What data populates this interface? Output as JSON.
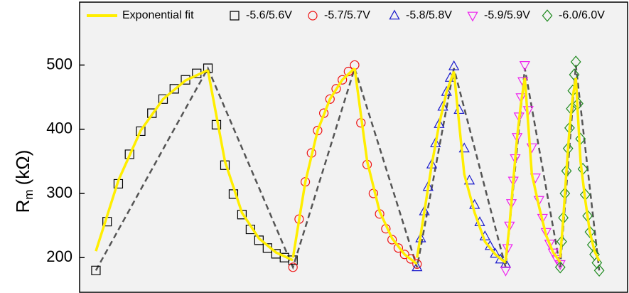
{
  "chart_data": {
    "type": "scatter",
    "y_label_main": "R",
    "y_label_sub": "m",
    "y_label_unit": "(kΩ)",
    "xlim": [
      0,
      77.3
    ],
    "ylim": [
      146,
      598
    ],
    "yticks": [
      200,
      300,
      400,
      500
    ],
    "fit": {
      "name": "Exponential fit",
      "color": "#ffee00",
      "x": [
        2.3,
        5.46,
        8.62,
        11.78,
        14.94,
        18.1,
        null,
        18.1,
        20.5,
        22.9,
        25.3,
        27.7,
        30.1,
        null,
        30.1,
        31.84,
        33.58,
        35.32,
        37.06,
        38.8,
        null,
        38.8,
        40.56,
        42.32,
        44.08,
        45.84,
        47.6,
        null,
        47.6,
        48.64,
        49.68,
        50.72,
        51.76,
        52.8,
        null,
        52.8,
        54.26,
        55.72,
        57.18,
        58.64,
        60.1,
        null,
        60.1,
        60.64,
        61.18,
        61.72,
        62.26,
        62.8,
        null,
        62.8,
        63.8,
        64.8,
        65.8,
        66.8,
        67.8,
        null,
        67.8,
        68.24,
        68.68,
        69.12,
        69.56,
        70.0,
        null,
        70.0,
        70.66,
        71.32,
        71.98,
        72.64,
        73.3
      ],
      "values": [
        210,
        320,
        398,
        447,
        476,
        492,
        null,
        492,
        350,
        270,
        230,
        208,
        196,
        null,
        200,
        318,
        398,
        447,
        477,
        495,
        null,
        495,
        350,
        272,
        230,
        205,
        190,
        null,
        200,
        272,
        345,
        408,
        458,
        490,
        null,
        490,
        330,
        270,
        225,
        205,
        192,
        null,
        195,
        250,
        320,
        388,
        440,
        480,
        null,
        480,
        330,
        280,
        235,
        208,
        193,
        null,
        200,
        262,
        335,
        402,
        450,
        480,
        null,
        480,
        350,
        290,
        240,
        210,
        195
      ]
    },
    "envelope": {
      "color": "#555555",
      "x": [
        2.3,
        18.1,
        30.1,
        38.8,
        47.6,
        52.8,
        60.1,
        62.8,
        67.8,
        70.0,
        73.3
      ],
      "values": [
        180,
        495,
        185,
        495,
        185,
        495,
        185,
        495,
        185,
        500,
        180
      ]
    },
    "series": [
      {
        "name": "-5.6/5.6V",
        "color": "#000000",
        "marker": "square",
        "x": [
          2.3,
          3.88,
          5.46,
          7.04,
          8.62,
          10.2,
          11.78,
          13.36,
          14.94,
          16.52,
          18.1,
          19.3,
          20.5,
          21.7,
          22.9,
          24.1,
          25.3,
          26.5,
          27.7,
          28.9,
          30.1
        ],
        "values": [
          180,
          256,
          315,
          361,
          397,
          425,
          447,
          463,
          477,
          487,
          495,
          407,
          344,
          299,
          267,
          244,
          227,
          215,
          206,
          200,
          196
        ]
      },
      {
        "name": "-5.7/5.7V",
        "color": "#ee1111",
        "marker": "circle",
        "x": [
          30.1,
          30.97,
          31.84,
          32.71,
          33.58,
          34.45,
          35.32,
          36.19,
          37.06,
          37.93,
          38.8,
          39.68,
          40.56,
          41.44,
          42.32,
          43.2,
          44.08,
          44.96,
          45.84,
          46.72,
          47.6
        ],
        "values": [
          185,
          260,
          318,
          363,
          398,
          425,
          447,
          463,
          477,
          490,
          500,
          410,
          345,
          300,
          268,
          245,
          228,
          215,
          205,
          198,
          190
        ]
      },
      {
        "name": "-5.8/5.8V",
        "color": "#1a1acc",
        "marker": "triangle-up",
        "x": [
          47.6,
          48.12,
          48.64,
          49.16,
          49.68,
          50.2,
          50.72,
          51.24,
          51.76,
          52.28,
          52.8,
          53.53,
          54.26,
          54.99,
          55.72,
          56.45,
          57.18,
          57.91,
          58.64,
          59.37,
          60.1
        ],
        "values": [
          185,
          230,
          272,
          310,
          345,
          378,
          408,
          435,
          458,
          480,
          498,
          430,
          370,
          320,
          282,
          255,
          233,
          218,
          206,
          197,
          190
        ]
      },
      {
        "name": "-5.9/5.9V",
        "color": "#ee22ee",
        "marker": "triangle-down",
        "x": [
          60.1,
          60.37,
          60.64,
          60.91,
          61.18,
          61.45,
          61.72,
          61.99,
          62.26,
          62.53,
          62.8,
          63.3,
          63.8,
          64.3,
          64.8,
          65.3,
          65.8,
          66.3,
          66.8,
          67.3,
          67.8
        ],
        "values": [
          180,
          215,
          250,
          285,
          320,
          355,
          388,
          420,
          450,
          475,
          500,
          430,
          372,
          325,
          290,
          262,
          240,
          222,
          208,
          198,
          190
        ]
      },
      {
        "name": "-6.0/6.0V",
        "color": "#1e8a1e",
        "marker": "diamond",
        "x": [
          67.8,
          68.02,
          68.24,
          68.46,
          68.68,
          68.9,
          69.12,
          69.34,
          69.56,
          69.78,
          70.0,
          70.33,
          70.66,
          70.99,
          71.32,
          71.65,
          71.98,
          72.31,
          72.64,
          72.97,
          73.3
        ],
        "values": [
          185,
          225,
          262,
          300,
          335,
          370,
          402,
          432,
          460,
          485,
          505,
          440,
          385,
          338,
          298,
          265,
          240,
          220,
          205,
          192,
          180
        ]
      }
    ]
  }
}
